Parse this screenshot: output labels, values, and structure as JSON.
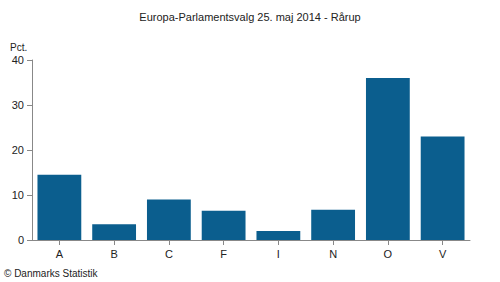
{
  "chart_data": {
    "type": "bar",
    "title": "Europa-Parlamentsvalg 25. maj 2014 - Rårup",
    "y_label": "Pct.",
    "source": "© Danmarks Statistik",
    "categories": [
      "A",
      "B",
      "C",
      "F",
      "I",
      "N",
      "O",
      "V"
    ],
    "values": [
      14.5,
      3.5,
      9,
      6.5,
      2,
      6.7,
      36,
      23
    ],
    "color": "#0b5e8e",
    "ylim": [
      0,
      40
    ],
    "yticks": [
      0,
      10,
      20,
      30,
      40
    ],
    "grid": false
  }
}
